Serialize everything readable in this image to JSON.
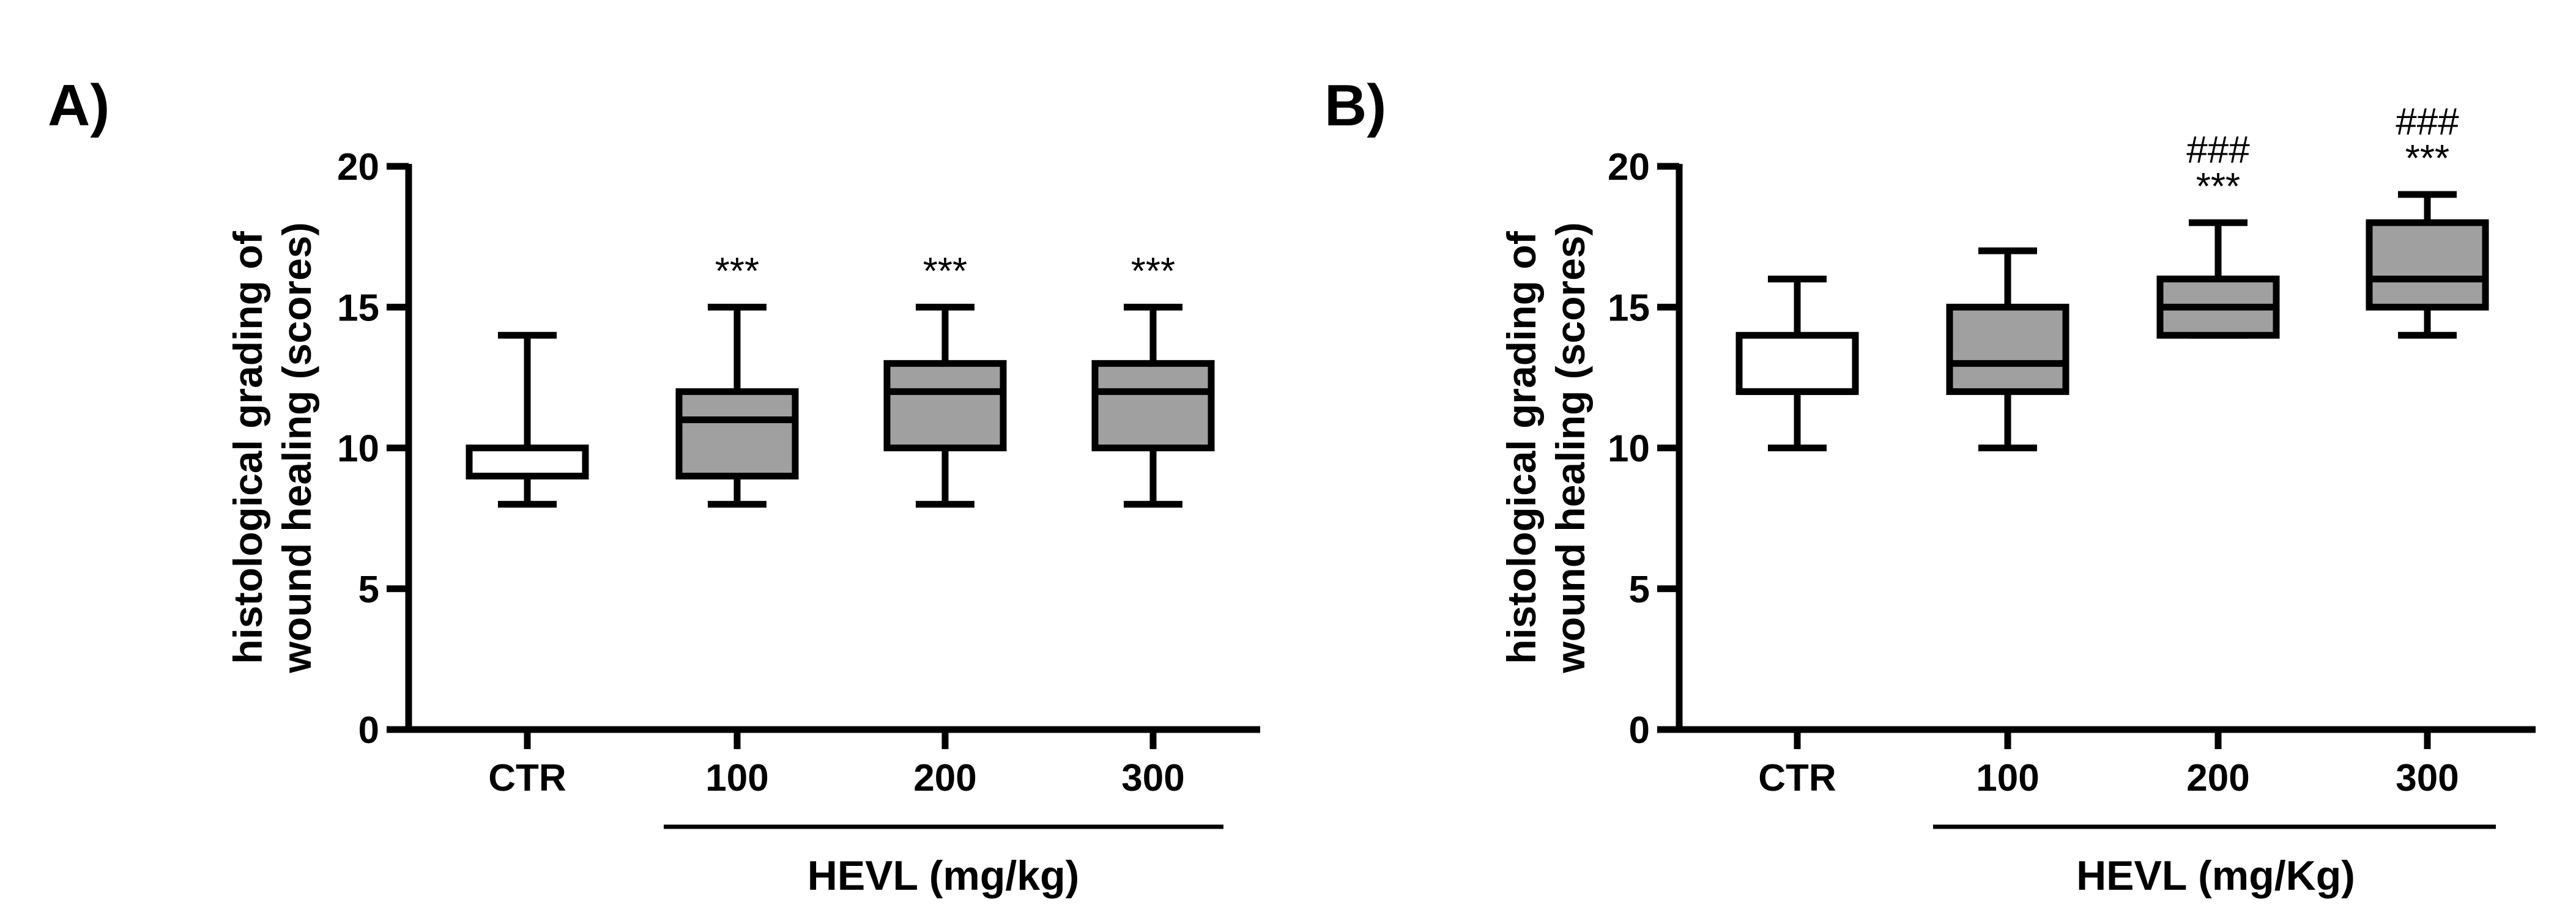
{
  "chart_data": [
    {
      "panel": "A)",
      "type": "box",
      "ylabel_line1": "histological grading of",
      "ylabel_line2": "wound healing (scores)",
      "ylim": [
        0,
        20
      ],
      "yticks": [
        "0",
        "5",
        "10",
        "15",
        "20"
      ],
      "categories": [
        "CTR",
        "100",
        "200",
        "300"
      ],
      "group_label": "HEVL (mg/kg)",
      "boxes": [
        {
          "min": 8,
          "q1": 9,
          "median": 9,
          "q3": 10,
          "max": 14,
          "color": "#ffffff",
          "annot": "",
          "annot2": ""
        },
        {
          "min": 8,
          "q1": 9,
          "median": 11,
          "q3": 12,
          "max": 15,
          "color": "#a0a0a0",
          "annot": "***",
          "annot2": ""
        },
        {
          "min": 8,
          "q1": 10,
          "median": 12,
          "q3": 13,
          "max": 15,
          "color": "#a0a0a0",
          "annot": "***",
          "annot2": ""
        },
        {
          "min": 8,
          "q1": 10,
          "median": 12,
          "q3": 13,
          "max": 15,
          "color": "#a0a0a0",
          "annot": "***",
          "annot2": ""
        }
      ]
    },
    {
      "panel": "B)",
      "type": "box",
      "ylabel_line1": "histological grading of",
      "ylabel_line2": "wound healing (scores)",
      "ylim": [
        0,
        20
      ],
      "yticks": [
        "0",
        "5",
        "10",
        "15",
        "20"
      ],
      "categories": [
        "CTR",
        "100",
        "200",
        "300"
      ],
      "group_label": "HEVL (mg/Kg)",
      "boxes": [
        {
          "min": 10,
          "q1": 12,
          "median": 12,
          "q3": 14,
          "max": 16,
          "color": "#ffffff",
          "annot": "",
          "annot2": ""
        },
        {
          "min": 10,
          "q1": 12,
          "median": 13,
          "q3": 15,
          "max": 17,
          "color": "#a0a0a0",
          "annot": "",
          "annot2": ""
        },
        {
          "min": 14,
          "q1": 14,
          "median": 15,
          "q3": 16,
          "max": 18,
          "color": "#a0a0a0",
          "annot": "***",
          "annot2": "###"
        },
        {
          "min": 14,
          "q1": 15,
          "median": 16,
          "q3": 18,
          "max": 19,
          "color": "#a0a0a0",
          "annot": "***",
          "annot2": "###"
        }
      ]
    }
  ]
}
